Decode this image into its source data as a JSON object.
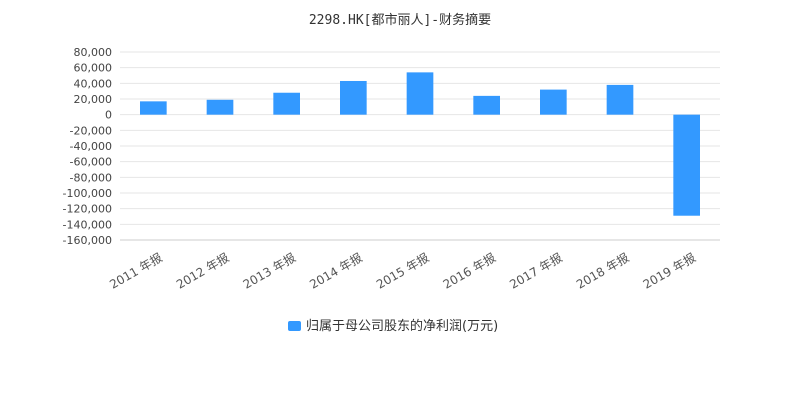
{
  "chart_data": {
    "type": "bar",
    "title": "2298.HK[都市丽人]-财务摘要",
    "categories": [
      "2011 年报",
      "2012 年报",
      "2013 年报",
      "2014 年报",
      "2015 年报",
      "2016 年报",
      "2017 年报",
      "2018 年报",
      "2019 年报"
    ],
    "series": [
      {
        "name": "归属于母公司股东的净利润(万元)",
        "color": "#3399ff",
        "values": [
          17000,
          19000,
          28000,
          43000,
          54000,
          24000,
          32000,
          38000,
          -129000
        ]
      }
    ],
    "ylim": [
      -160000,
      80000
    ],
    "yticks": [
      80000,
      60000,
      40000,
      20000,
      0,
      -20000,
      -40000,
      -60000,
      -80000,
      -100000,
      -120000,
      -140000,
      -160000
    ],
    "ytick_labels": [
      "80,000",
      "60,000",
      "40,000",
      "20,000",
      "0",
      "-20,000",
      "-40,000",
      "-60,000",
      "-80,000",
      "-100,000",
      "-120,000",
      "-140,000",
      "-160,000"
    ],
    "grid": true,
    "legend_position": "bottom"
  }
}
